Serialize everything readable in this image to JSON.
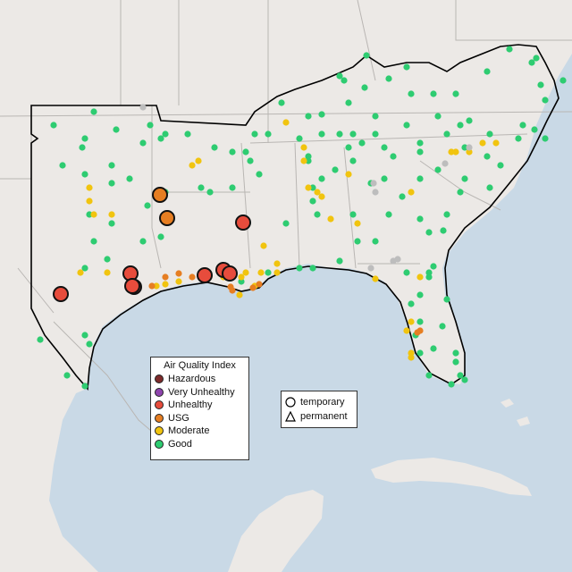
{
  "legend": {
    "title": "Air Quality Index",
    "categories": [
      {
        "label": "Hazardous",
        "color": "#7e2b2b"
      },
      {
        "label": "Very Unhealthy",
        "color": "#8e44ad"
      },
      {
        "label": "Unhealthy",
        "color": "#e74c3c"
      },
      {
        "label": "USG",
        "color": "#e67e22"
      },
      {
        "label": "Moderate",
        "color": "#f1c40f"
      },
      {
        "label": "Good",
        "color": "#2ecc71"
      }
    ]
  },
  "shape_legend": [
    {
      "label": "temporary",
      "shape": "circle-icon"
    },
    {
      "label": "permanent",
      "shape": "triangle-icon"
    }
  ],
  "colors": {
    "land": "#ece9e6",
    "water": "#c9d9e6",
    "border": "#b9b6b3",
    "outline": "#000000",
    "no_data": "#bdbdbd"
  },
  "monitors": {
    "Good": 150,
    "Moderate": 42,
    "USG": 10,
    "Unhealthy": 9,
    "no_data": 8
  }
}
